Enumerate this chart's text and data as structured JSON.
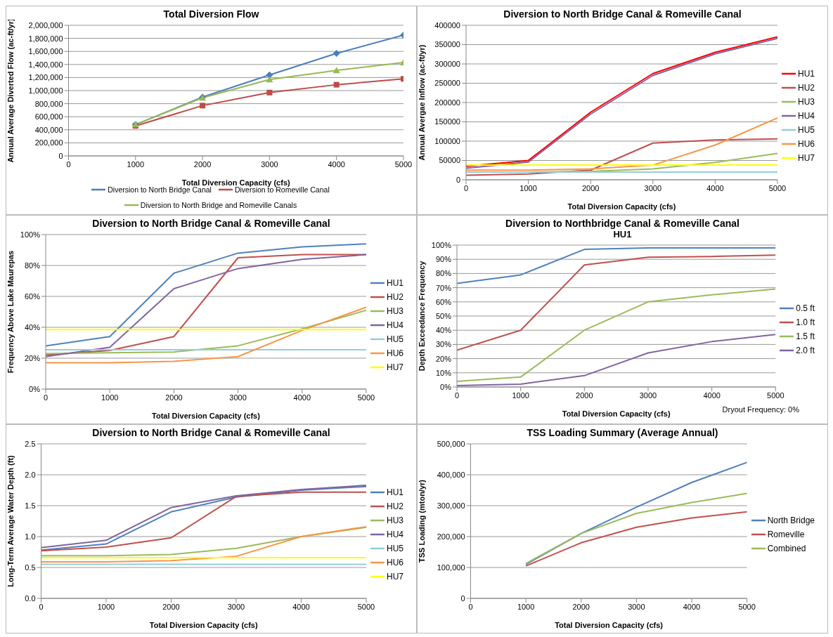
{
  "chart_data": [
    {
      "type": "line",
      "title": "Total Diversion Flow",
      "xlabel": "Total Diversion Capacity (cfs)",
      "ylabel": "Annual Average Diverted Flow (ac-ft/yr)",
      "x": [
        1000,
        2000,
        3000,
        4000,
        5000
      ],
      "xlim": [
        0,
        5000
      ],
      "xticks": [
        0,
        1000,
        2000,
        3000,
        4000,
        5000
      ],
      "ylim": [
        0,
        2000000
      ],
      "yticks": [
        0,
        {
          "value": 200000,
          "label": "200,000"
        },
        {
          "value": 400000,
          "label": "400,000"
        },
        {
          "value": 600000,
          "label": "600,000"
        },
        {
          "value": 800000,
          "label": "800,000"
        },
        {
          "value": 1000000,
          "label": "1,000,000"
        },
        {
          "value": 1200000,
          "label": "1,200,000"
        },
        {
          "value": 1400000,
          "label": "1,400,000"
        },
        {
          "value": 1600000,
          "label": "1,600,000"
        },
        {
          "value": 1800000,
          "label": "1,800,000"
        },
        {
          "value": 2000000,
          "label": "2,000,000"
        }
      ],
      "grid": "y",
      "legend": "bottom",
      "series": [
        {
          "name": "Diversion to North Bridge Canal",
          "color": "#4a7ebb",
          "marker": "diamond",
          "values": [
            480000,
            900000,
            1240000,
            1570000,
            1850000
          ]
        },
        {
          "name": "Diversion to Romeville Canal",
          "color": "#be4b48",
          "marker": "square",
          "values": [
            460000,
            770000,
            970000,
            1090000,
            1180000
          ]
        },
        {
          "name": "Diversion to North Bridge and Romeville Canals",
          "color": "#98b954",
          "marker": "triangle",
          "values": [
            480000,
            890000,
            1170000,
            1310000,
            1430000
          ]
        }
      ]
    },
    {
      "type": "line",
      "title": "Diversion to North Bridge Canal & Romeville Canal",
      "xlabel": "Total Diversion Capacity (cfs)",
      "ylabel": "Annual Avergae Inflow (ac-ft/yr)",
      "x": [
        0,
        1000,
        2000,
        3000,
        4000,
        5000
      ],
      "xlim": [
        0,
        5000
      ],
      "xticks": [
        0,
        1000,
        2000,
        3000,
        4000,
        5000
      ],
      "ylim": [
        0,
        400000
      ],
      "yticks": [
        0,
        50000,
        100000,
        150000,
        200000,
        250000,
        300000,
        350000,
        400000
      ],
      "grid": "y",
      "legend": "right",
      "marker": "none",
      "series": [
        {
          "name": "HU1",
          "color": "#ff0000",
          "values": [
            35000,
            50000,
            175000,
            275000,
            330000,
            370000
          ]
        },
        {
          "name": "HU2",
          "color": "#c0504d",
          "values": [
            12000,
            15000,
            25000,
            95000,
            103000,
            106000
          ]
        },
        {
          "name": "HU3",
          "color": "#9bbb59",
          "values": [
            20000,
            20000,
            22000,
            28000,
            45000,
            68000
          ]
        },
        {
          "name": "HU4",
          "color": "#8064a2",
          "values": [
            30000,
            46000,
            170000,
            270000,
            326000,
            366000
          ]
        },
        {
          "name": "HU5",
          "color": "#93cddd",
          "values": [
            20000,
            20000,
            20000,
            20000,
            20000,
            20000
          ]
        },
        {
          "name": "HU6",
          "color": "#f79646",
          "values": [
            25000,
            25000,
            28000,
            38000,
            90000,
            160000
          ]
        },
        {
          "name": "HU7",
          "color": "#ffff00",
          "values": [
            38000,
            38000,
            38000,
            38000,
            38000,
            38000
          ]
        }
      ]
    },
    {
      "type": "line",
      "title": "Diversion to North Bridge Canal & Romeville Canal",
      "xlabel": "Total Diversion Capacity (cfs)",
      "ylabel": "Frequency Above Lake Maurepas",
      "x": [
        0,
        1000,
        2000,
        3000,
        4000,
        5000
      ],
      "xlim": [
        0,
        5000
      ],
      "xticks": [
        0,
        1000,
        2000,
        3000,
        4000,
        5000
      ],
      "ylim": [
        0,
        100
      ],
      "yticks": [
        {
          "value": 0,
          "label": "0%"
        },
        {
          "value": 20,
          "label": "20%"
        },
        {
          "value": 40,
          "label": "40%"
        },
        {
          "value": 60,
          "label": "60%"
        },
        {
          "value": 80,
          "label": "80%"
        },
        {
          "value": 100,
          "label": "100%"
        }
      ],
      "grid": "y",
      "legend": "right",
      "marker": "none",
      "series": [
        {
          "name": "HU1",
          "color": "#4f81bd",
          "values": [
            28,
            34,
            75,
            88,
            92,
            94
          ]
        },
        {
          "name": "HU2",
          "color": "#c0504d",
          "values": [
            22,
            25,
            34,
            85,
            87,
            87
          ]
        },
        {
          "name": "HU3",
          "color": "#9bbb59",
          "values": [
            23,
            23.5,
            24,
            28,
            39,
            51
          ]
        },
        {
          "name": "HU4",
          "color": "#8064a2",
          "values": [
            21,
            27,
            65,
            78,
            84,
            87
          ]
        },
        {
          "name": "HU5",
          "color": "#93cddd",
          "values": [
            25.5,
            25.5,
            25.5,
            25.5,
            25.5,
            25.5
          ]
        },
        {
          "name": "HU6",
          "color": "#f79646",
          "values": [
            17,
            17,
            18,
            21,
            38,
            53
          ]
        },
        {
          "name": "HU7",
          "color": "#ffff00",
          "values": [
            38.5,
            38.5,
            38.5,
            38.5,
            38.5,
            38.5
          ]
        }
      ]
    },
    {
      "type": "line",
      "title": "Diversion to Northbridge Canal & Romeville Canal",
      "subtitle": "HU1",
      "xlabel": "Total Diversion Capacity (cfs)",
      "ylabel": "Depth Exceedance Frequency",
      "annotations": [
        "Dryout Frequency: 0%"
      ],
      "x": [
        0,
        1000,
        2000,
        3000,
        4000,
        5000
      ],
      "xlim": [
        0,
        5000
      ],
      "xticks": [
        0,
        1000,
        2000,
        3000,
        4000,
        5000
      ],
      "ylim": [
        0,
        100
      ],
      "yticks": [
        {
          "value": 0,
          "label": "0%"
        },
        {
          "value": 10,
          "label": "10%"
        },
        {
          "value": 20,
          "label": "20%"
        },
        {
          "value": 30,
          "label": "30%"
        },
        {
          "value": 40,
          "label": "40%"
        },
        {
          "value": 50,
          "label": "50%"
        },
        {
          "value": 60,
          "label": "60%"
        },
        {
          "value": 70,
          "label": "70%"
        },
        {
          "value": 80,
          "label": "80%"
        },
        {
          "value": 90,
          "label": "90%"
        },
        {
          "value": 100,
          "label": "100%"
        }
      ],
      "grid": "y",
      "legend": "right",
      "marker": "none",
      "series": [
        {
          "name": "0.5 ft",
          "color": "#4f81bd",
          "values": [
            73,
            79,
            97,
            98,
            98,
            98
          ]
        },
        {
          "name": "1.0 ft",
          "color": "#c0504d",
          "values": [
            26,
            40,
            86,
            91.5,
            92,
            93
          ]
        },
        {
          "name": "1.5 ft",
          "color": "#9bbb59",
          "values": [
            4,
            7,
            40,
            60,
            65,
            69
          ]
        },
        {
          "name": "2.0 ft",
          "color": "#8064a2",
          "values": [
            1,
            2,
            8,
            24,
            32,
            37
          ]
        }
      ]
    },
    {
      "type": "line",
      "title": "Diversion to North Bridge Canal & Romeville Canal",
      "xlabel": "Total Diversion Capacity (cfs)",
      "ylabel": "Long-Term Average Water Depth (ft)",
      "x": [
        0,
        1000,
        2000,
        3000,
        4000,
        5000
      ],
      "xlim": [
        0,
        5000
      ],
      "xticks": [
        0,
        1000,
        2000,
        3000,
        4000,
        5000
      ],
      "ylim": [
        0,
        2.5
      ],
      "yticks": [
        {
          "value": 0,
          "label": "0.0"
        },
        0.5,
        {
          "value": 1,
          "label": "1.0"
        },
        1.5,
        {
          "value": 2,
          "label": "2.0"
        },
        2.5
      ],
      "grid": "y",
      "legend": "right",
      "marker": "none",
      "series": [
        {
          "name": "HU1",
          "color": "#4f81bd",
          "values": [
            0.78,
            0.88,
            1.4,
            1.64,
            1.75,
            1.81
          ]
        },
        {
          "name": "HU2",
          "color": "#c0504d",
          "values": [
            0.77,
            0.83,
            0.98,
            1.65,
            1.72,
            1.72
          ]
        },
        {
          "name": "HU3",
          "color": "#9bbb59",
          "values": [
            0.69,
            0.69,
            0.71,
            0.81,
            1.0,
            1.15
          ]
        },
        {
          "name": "HU4",
          "color": "#8064a2",
          "values": [
            0.82,
            0.94,
            1.47,
            1.66,
            1.76,
            1.83
          ]
        },
        {
          "name": "HU5",
          "color": "#93cddd",
          "values": [
            0.55,
            0.55,
            0.55,
            0.55,
            0.55,
            0.55
          ]
        },
        {
          "name": "HU6",
          "color": "#f79646",
          "values": [
            0.59,
            0.59,
            0.61,
            0.68,
            1.0,
            1.16
          ]
        },
        {
          "name": "HU7",
          "color": "#ffff00",
          "values": [
            0.66,
            0.66,
            0.66,
            0.66,
            0.66,
            0.66
          ]
        }
      ]
    },
    {
      "type": "line",
      "title": "TSS Loading Summary (Average Annual)",
      "xlabel": "Total Diversion Capacity (cfs)",
      "ylabel": "TSS Loading (mton/yr)",
      "x": [
        1000,
        2000,
        3000,
        4000,
        5000
      ],
      "xlim": [
        0,
        5000
      ],
      "xticks": [
        0,
        1000,
        2000,
        3000,
        4000,
        5000
      ],
      "ylim": [
        0,
        500000
      ],
      "yticks": [
        0,
        {
          "value": 100000,
          "label": "100,000"
        },
        {
          "value": 200000,
          "label": "200,000"
        },
        {
          "value": 300000,
          "label": "300,000"
        },
        {
          "value": 400000,
          "label": "400,000"
        },
        {
          "value": 500000,
          "label": "500,000"
        }
      ],
      "grid": "y",
      "legend": "right",
      "marker": "none",
      "series": [
        {
          "name": "North Bridge",
          "color": "#4f81bd",
          "values": [
            110000,
            210000,
            295000,
            375000,
            440000
          ]
        },
        {
          "name": "Romeville",
          "color": "#c0504d",
          "values": [
            105000,
            180000,
            230000,
            260000,
            280000
          ]
        },
        {
          "name": "Combined",
          "color": "#9bbb59",
          "values": [
            113000,
            210000,
            275000,
            310000,
            340000
          ]
        }
      ]
    }
  ]
}
